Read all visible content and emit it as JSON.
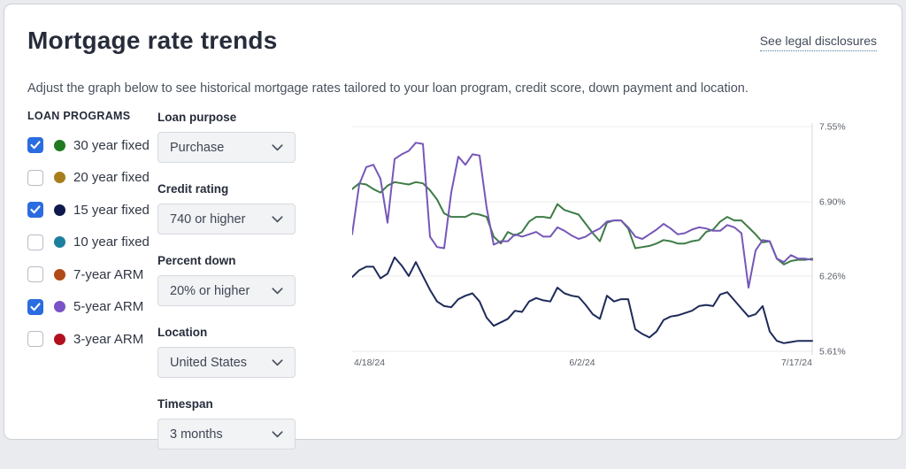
{
  "header": {
    "title": "Mortgage rate trends",
    "legal_link": "See legal disclosures"
  },
  "subtitle": "Adjust the graph below to see historical mortgage rates tailored to your loan program, credit score, down payment and location.",
  "loan_programs": {
    "heading": "LOAN PROGRAMS",
    "items": [
      {
        "label": "30 year fixed",
        "checked": true,
        "color": "#217a21"
      },
      {
        "label": "20 year fixed",
        "checked": false,
        "color": "#a87e1c"
      },
      {
        "label": "15 year fixed",
        "checked": true,
        "color": "#10194d"
      },
      {
        "label": "10 year fixed",
        "checked": false,
        "color": "#1d7f9e"
      },
      {
        "label": "7-year ARM",
        "checked": false,
        "color": "#b14a16"
      },
      {
        "label": "5-year ARM",
        "checked": true,
        "color": "#7a52c7"
      },
      {
        "label": "3-year ARM",
        "checked": false,
        "color": "#b3101f"
      }
    ],
    "checkbox_checked_color": "#2b6ce0"
  },
  "filters": [
    {
      "id": "loan-purpose",
      "label": "Loan purpose",
      "value": "Purchase"
    },
    {
      "id": "credit-rating",
      "label": "Credit rating",
      "value": "740 or higher"
    },
    {
      "id": "percent-down",
      "label": "Percent down",
      "value": "20% or higher"
    },
    {
      "id": "location",
      "label": "Location",
      "value": "United States"
    },
    {
      "id": "timespan",
      "label": "Timespan",
      "value": "3 months"
    }
  ],
  "chart_data": {
    "type": "line",
    "x_labels": [
      "4/18/24",
      "6/2/24",
      "7/17/24"
    ],
    "y_ticks": [
      7.55,
      6.9,
      6.26,
      5.61
    ],
    "y_tick_labels": [
      "7.55%",
      "6.90%",
      "6.26%",
      "5.61%"
    ],
    "y_range": [
      5.61,
      7.55
    ],
    "grid": true,
    "legend": "none",
    "series": [
      {
        "name": "30 year fixed",
        "color": "#3e7b46",
        "values": [
          7.01,
          7.06,
          7.05,
          7.01,
          6.98,
          7.04,
          7.07,
          7.06,
          7.05,
          7.07,
          7.06,
          7.0,
          6.92,
          6.8,
          6.77,
          6.77,
          6.77,
          6.8,
          6.79,
          6.77,
          6.6,
          6.54,
          6.64,
          6.61,
          6.64,
          6.73,
          6.77,
          6.77,
          6.76,
          6.88,
          6.83,
          6.81,
          6.79,
          6.71,
          6.63,
          6.56,
          6.72,
          6.74,
          6.74,
          6.67,
          6.5,
          6.51,
          6.52,
          6.54,
          6.57,
          6.56,
          6.54,
          6.54,
          6.56,
          6.57,
          6.64,
          6.66,
          6.73,
          6.77,
          6.74,
          6.74,
          6.68,
          6.62,
          6.55,
          6.56,
          6.41,
          6.36,
          6.39,
          6.4,
          6.4,
          6.41
        ]
      },
      {
        "name": "15 year fixed",
        "color": "#1e2b5a",
        "values": [
          6.25,
          6.31,
          6.34,
          6.34,
          6.24,
          6.28,
          6.42,
          6.35,
          6.26,
          6.38,
          6.26,
          6.14,
          6.04,
          6.0,
          5.99,
          6.06,
          6.09,
          6.11,
          6.04,
          5.9,
          5.83,
          5.86,
          5.89,
          5.96,
          5.95,
          6.04,
          6.07,
          6.05,
          6.04,
          6.16,
          6.11,
          6.09,
          6.08,
          6.01,
          5.93,
          5.89,
          6.09,
          6.04,
          6.06,
          6.06,
          5.8,
          5.76,
          5.73,
          5.78,
          5.88,
          5.91,
          5.92,
          5.94,
          5.96,
          6.0,
          6.01,
          6.0,
          6.1,
          6.12,
          6.05,
          5.98,
          5.91,
          5.93,
          6.0,
          5.78,
          5.7,
          5.68,
          5.69,
          5.7,
          5.7,
          5.7
        ]
      },
      {
        "name": "5-year ARM",
        "color": "#7657b8",
        "values": [
          6.62,
          7.05,
          7.2,
          7.22,
          7.1,
          6.72,
          7.27,
          7.31,
          7.34,
          7.41,
          7.4,
          6.6,
          6.51,
          6.5,
          6.98,
          7.29,
          7.22,
          7.31,
          7.3,
          6.85,
          6.53,
          6.56,
          6.56,
          6.62,
          6.6,
          6.62,
          6.64,
          6.6,
          6.6,
          6.68,
          6.65,
          6.61,
          6.58,
          6.6,
          6.64,
          6.67,
          6.73,
          6.74,
          6.74,
          6.68,
          6.6,
          6.58,
          6.62,
          6.66,
          6.71,
          6.67,
          6.62,
          6.63,
          6.66,
          6.68,
          6.67,
          6.65,
          6.65,
          6.7,
          6.68,
          6.63,
          6.16,
          6.48,
          6.57,
          6.56,
          6.41,
          6.38,
          6.44,
          6.41,
          6.41,
          6.4
        ]
      }
    ]
  }
}
